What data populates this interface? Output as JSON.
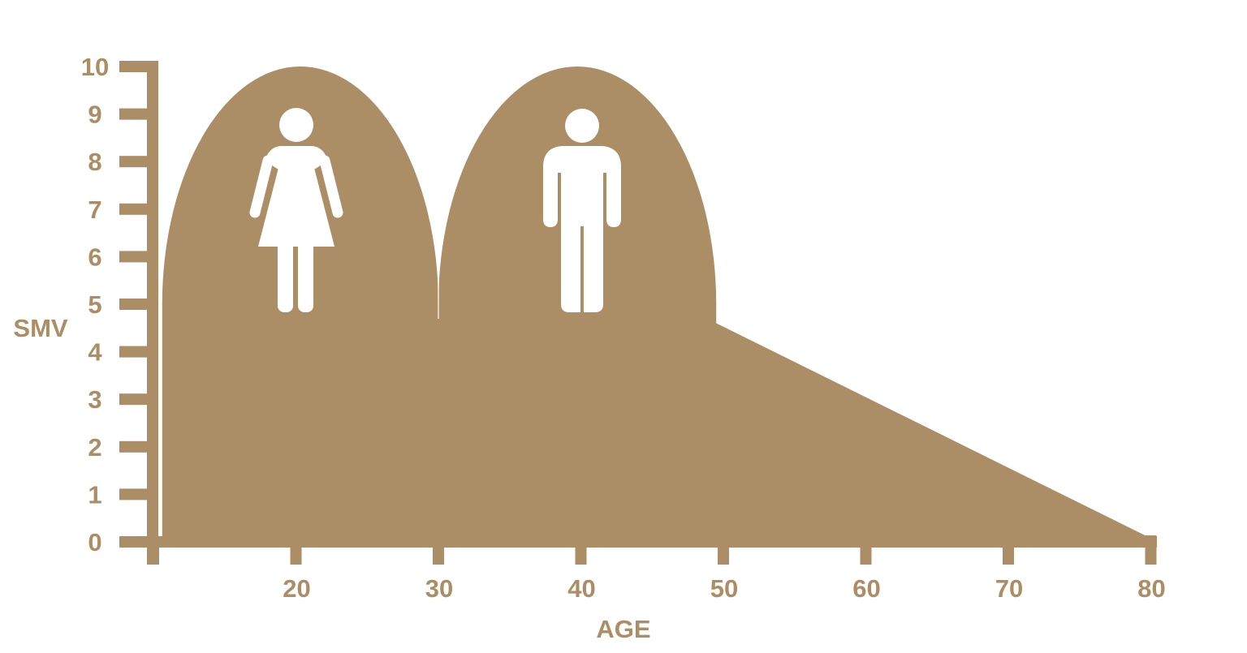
{
  "chart_data": {
    "type": "area",
    "title": "",
    "xlabel": "AGE",
    "ylabel": "SMV",
    "xlim": [
      10,
      80
    ],
    "ylim": [
      0,
      10
    ],
    "x_ticks": [
      10,
      20,
      30,
      40,
      50,
      60,
      70,
      80
    ],
    "x_tick_labels": [
      "",
      "20",
      "30",
      "40",
      "50",
      "60",
      "70",
      "80"
    ],
    "y_ticks": [
      0,
      1,
      2,
      3,
      4,
      5,
      6,
      7,
      8,
      9,
      10
    ],
    "y_tick_labels": [
      "0",
      "1",
      "2",
      "3",
      "4",
      "5",
      "6",
      "7",
      "8",
      "9",
      "10"
    ],
    "grid": false,
    "color": "#ab8d66",
    "segments": [
      {
        "shape": "half-ellipse",
        "x_start": 10.5,
        "x_end": 30,
        "base": 5,
        "peak_x": 20,
        "peak": 10,
        "icon": "woman-icon"
      },
      {
        "shape": "half-ellipse",
        "x_start": 30,
        "x_end": 49.5,
        "base": 5,
        "peak_x": 40,
        "peak": 10,
        "icon": "man-icon"
      },
      {
        "shape": "line",
        "points": [
          [
            49.5,
            4.6
          ],
          [
            79.6,
            0
          ]
        ]
      }
    ]
  }
}
